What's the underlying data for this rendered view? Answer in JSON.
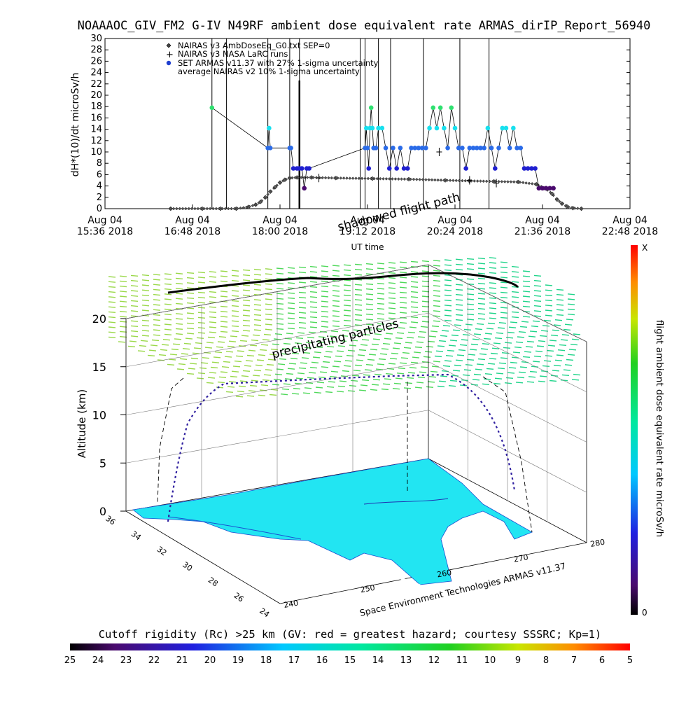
{
  "title": "NOAAAOC_GIV_FM2 G-IV   N49RF  ambient dose equivalent rate ARMAS_dirIP_Report_56940",
  "top_chart": {
    "ylabel": "dH*(10)/dt microSv/h",
    "xlabel": "UT time",
    "legend": [
      "NAIRAS v3 AmbDoseEq_G0.txt SEP=0",
      "NAIRAS v3 NASA LaRC runs",
      "SET ARMAS v11.37 with 27% 1-sigma uncertainty",
      "average NAIRAS v2 10% 1-sigma uncertainty"
    ],
    "overlay_labels": [
      "shadowed flight path"
    ]
  },
  "three_d": {
    "zlabel": "Altitude (km)",
    "z_ticks": [
      "0",
      "5",
      "10",
      "15",
      "20"
    ],
    "lat_ticks": [
      "36",
      "34",
      "32",
      "30",
      "28",
      "26",
      "24"
    ],
    "lon_ticks": [
      "240",
      "250",
      "260",
      "270",
      "280"
    ],
    "annotation": "precipitating particles",
    "credit": "Space Environment Technologies ARMAS v11.37"
  },
  "right_colorbar": {
    "label": "flight ambient dose equivalent rate microSv/h",
    "top_label": "X",
    "bottom_label": "0"
  },
  "bottom_colorbar": {
    "label": "Cutoff rigidity (Rc) >25 km (GV: red = greatest hazard; courtesy SSSRC; Kp=1)",
    "ticks": [
      "25",
      "24",
      "23",
      "22",
      "21",
      "20",
      "19",
      "18",
      "17",
      "16",
      "15",
      "14",
      "13",
      "12",
      "11",
      "10",
      "9",
      "8",
      "7",
      "6",
      "5"
    ]
  },
  "chart_data": [
    {
      "type": "scatter",
      "title": "",
      "ylabel": "dH*(10)/dt microSv/h",
      "xlabel": "UT time",
      "ylim": [
        0,
        30
      ],
      "xlim": [
        "15:36",
        "22:48"
      ],
      "y_ticks": [
        "0",
        "2",
        "4",
        "6",
        "8",
        "10",
        "12",
        "14",
        "16",
        "18",
        "20",
        "22",
        "24",
        "26",
        "28",
        "30"
      ],
      "x_ticks": [
        {
          "top": "Aug 04",
          "bottom": "15:36 2018",
          "minutes": 0
        },
        {
          "top": "Aug 04",
          "bottom": "16:48 2018",
          "minutes": 72
        },
        {
          "top": "Aug 04",
          "bottom": "18:00 2018",
          "minutes": 144
        },
        {
          "top": "Aug 04",
          "bottom": "19:12 2018",
          "minutes": 216
        },
        {
          "top": "Aug 04",
          "bottom": "20:24 2018",
          "minutes": 288
        },
        {
          "top": "Aug 04",
          "bottom": "21:36 2018",
          "minutes": 360
        },
        {
          "top": "Aug 04",
          "bottom": "22:48 2018",
          "minutes": 432
        }
      ],
      "series": [
        {
          "name": "NAIRAS v3 AmbDoseEq_G0.txt SEP=0",
          "minutes": [
            54,
            80,
            95,
            108,
            118,
            124,
            128,
            132,
            136,
            140,
            144,
            148,
            152,
            158,
            170,
            190,
            220,
            250,
            280,
            300,
            320,
            340,
            355,
            362,
            368,
            372,
            376,
            380,
            385,
            392
          ],
          "values": [
            0,
            0,
            0,
            0,
            0.3,
            0.7,
            1.2,
            2.0,
            3.0,
            3.8,
            4.6,
            5.1,
            5.4,
            5.5,
            5.5,
            5.4,
            5.3,
            5.2,
            5.0,
            4.9,
            4.8,
            4.7,
            4.3,
            3.6,
            2.6,
            1.6,
            0.9,
            0.4,
            0.1,
            0
          ]
        },
        {
          "name": "SET ARMAS v11.37 with 27% 1-sigma uncertainty",
          "minutes": [
            88,
            134,
            135,
            136,
            152,
            153,
            155,
            158,
            160,
            162,
            164,
            166,
            168,
            214,
            215,
            216,
            217,
            218,
            219,
            220,
            221,
            222,
            223,
            225,
            228,
            231,
            234,
            237,
            240,
            243,
            246,
            249,
            252,
            255,
            258,
            261,
            264,
            267,
            270,
            273,
            276,
            279,
            282,
            285,
            288,
            291,
            294,
            297,
            300,
            303,
            306,
            309,
            312,
            315,
            318,
            321,
            324,
            327,
            330,
            333,
            336,
            339,
            342,
            345,
            348,
            351,
            354,
            357,
            360,
            363,
            366,
            369
          ],
          "values": [
            17.8,
            10.7,
            14.2,
            10.7,
            10.7,
            10.7,
            7.1,
            7.1,
            7.1,
            7.1,
            3.6,
            7.1,
            7.1,
            10.7,
            14.2,
            10.7,
            7.1,
            14.2,
            17.8,
            14.2,
            10.7,
            10.7,
            10.7,
            14.2,
            14.2,
            10.7,
            7.1,
            10.7,
            7.1,
            10.7,
            7.1,
            7.1,
            10.7,
            10.7,
            10.7,
            10.7,
            10.7,
            14.2,
            17.8,
            14.2,
            17.8,
            14.2,
            10.7,
            17.8,
            14.2,
            10.7,
            10.7,
            7.1,
            10.7,
            10.7,
            10.7,
            10.7,
            10.7,
            14.2,
            10.7,
            7.1,
            10.7,
            14.2,
            14.2,
            10.7,
            14.2,
            10.7,
            10.7,
            7.1,
            7.1,
            7.1,
            7.1,
            3.6,
            3.6,
            3.6,
            3.6,
            3.6
          ]
        },
        {
          "name": "NAIRAS v3 NASA LaRC runs",
          "minutes": [
            176,
            275,
            300,
            322
          ],
          "values": [
            5.4,
            10.0,
            5.0,
            4.5
          ]
        }
      ],
      "vertical_lines_minutes": [
        88,
        100,
        134,
        152,
        160,
        210,
        214,
        225,
        235,
        262,
        292,
        316
      ]
    },
    {
      "type": "heatmap",
      "title": "",
      "zlabel": "Altitude (km)",
      "zlim": [
        0,
        20
      ],
      "lat_range": [
        24,
        36
      ],
      "lon_range": [
        240,
        280
      ],
      "flight_track_altitudes_km": [
        0,
        2,
        5,
        8,
        10.5,
        12,
        13.5,
        14,
        14.2,
        14.5,
        14.3,
        14,
        12,
        9,
        6,
        3,
        1,
        0
      ]
    }
  ]
}
